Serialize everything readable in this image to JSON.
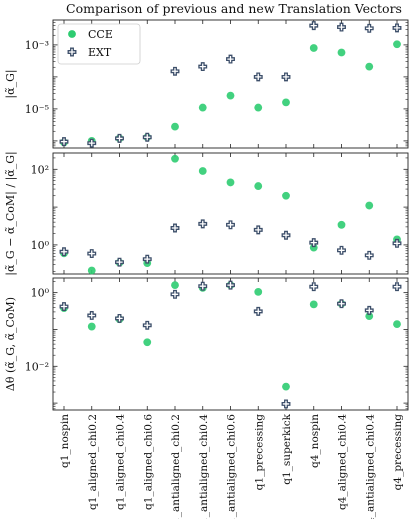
{
  "chart_data": {
    "type": "scatter",
    "title": "Comparison of previous and new Translation Vectors",
    "categories": [
      "q1_nospin",
      "q1_aligned_chi0.2",
      "q1_aligned_chi0.4",
      "q1_aligned_chi0.6",
      "q1_antialigned_chi0.2",
      "q1_antialigned_chi0.4",
      "q1_antialigned_chi0.6",
      "q1_precessing",
      "q1_superkick",
      "q4_nospin",
      "q4_aligned_chi0.4",
      "q4_antialigned_chi0.4",
      "q4_precessing"
    ],
    "legend": {
      "position": "top-left",
      "entries": [
        "CCE",
        "EXT"
      ]
    },
    "colors": {
      "CCE": "#2ecc71",
      "EXT": "#3d4f6a"
    },
    "panels": [
      {
        "ylabel": "|α̃_G|",
        "scale": "log",
        "ylim": [
          6e-07,
          0.006
        ],
        "yticks": [
          1e-05,
          0.001
        ],
        "ytick_labels": [
          "10⁻⁵",
          "10⁻³"
        ],
        "series": [
          {
            "name": "CCE",
            "values": [
              9e-07,
              1e-06,
              1.2e-06,
              1.3e-06,
              2.8e-06,
              1.1e-05,
              2.6e-05,
              1.1e-05,
              1.6e-05,
              0.0008,
              0.00058,
              0.00021,
              0.00105
            ]
          },
          {
            "name": "EXT",
            "values": [
              9.5e-07,
              8.5e-07,
              1.2e-06,
              1.3e-06,
              0.00015,
              0.00021,
              0.00036,
              0.0001,
              0.0001,
              0.004,
              0.0036,
              0.0033,
              0.0034
            ]
          }
        ]
      },
      {
        "ylabel": "|α̃_G − α̃_CoM| / |α̃_G|",
        "scale": "log",
        "ylim": [
          0.17,
          270
        ],
        "yticks": [
          1,
          100
        ],
        "ytick_labels": [
          "10⁰",
          "10²"
        ],
        "series": [
          {
            "name": "CCE",
            "values": [
              0.6,
              0.21,
              0.34,
              0.33,
              190,
              90,
              45,
              36,
              20,
              0.85,
              3.4,
              11,
              1.4
            ]
          },
          {
            "name": "EXT",
            "values": [
              0.66,
              0.59,
              0.35,
              0.42,
              2.8,
              3.6,
              3.4,
              2.5,
              1.8,
              1.15,
              0.72,
              0.53,
              1.1
            ]
          }
        ]
      },
      {
        "ylabel": "Δθ (α̃_G, α̃_CoM)",
        "scale": "log",
        "ylim": [
          0.00065,
          2.5
        ],
        "yticks": [
          0.01,
          1
        ],
        "ytick_labels": [
          "10⁻²",
          "10⁰"
        ],
        "series": [
          {
            "name": "CCE",
            "values": [
              0.38,
              0.12,
              0.19,
              0.045,
              1.6,
              1.35,
              1.6,
              1.05,
              0.0028,
              0.48,
              0.5,
              0.23,
              0.14
            ]
          },
          {
            "name": "EXT",
            "values": [
              0.42,
              0.24,
              0.2,
              0.13,
              0.9,
              1.5,
              1.6,
              0.31,
              0.00095,
              1.45,
              0.5,
              0.33,
              1.45
            ]
          }
        ]
      }
    ]
  }
}
